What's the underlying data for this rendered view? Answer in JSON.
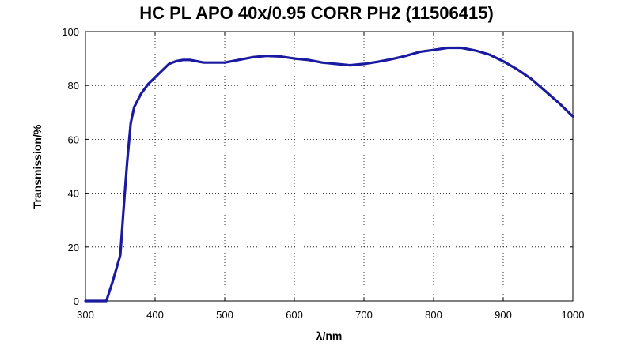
{
  "chart_data": {
    "type": "line",
    "title": "HC PL APO 40x/0.95 CORR PH2 (11506415)",
    "xlabel": "λ/nm",
    "ylabel": "Transmission/%",
    "xlim": [
      300,
      1000
    ],
    "ylim": [
      0,
      100
    ],
    "xticks": [
      300,
      400,
      500,
      600,
      700,
      800,
      900,
      1000
    ],
    "yticks": [
      0,
      20,
      40,
      60,
      80,
      100
    ],
    "grid": "dotted",
    "series": [
      {
        "color": "#1a1aa0",
        "x": [
          300,
          320,
          330,
          340,
          350,
          355,
          360,
          365,
          370,
          380,
          390,
          400,
          410,
          420,
          430,
          440,
          450,
          460,
          470,
          480,
          500,
          520,
          540,
          560,
          580,
          600,
          620,
          640,
          660,
          680,
          700,
          720,
          740,
          760,
          780,
          800,
          820,
          840,
          860,
          880,
          900,
          920,
          940,
          960,
          980,
          1000
        ],
        "y": [
          0,
          0,
          0,
          8,
          17,
          35,
          52,
          66,
          72,
          77,
          80.5,
          83,
          85.5,
          88,
          89,
          89.5,
          89.5,
          89,
          88.5,
          88.5,
          88.5,
          89.5,
          90.5,
          91,
          90.8,
          90,
          89.5,
          88.5,
          88,
          87.5,
          88,
          88.8,
          89.8,
          91,
          92.5,
          93.2,
          94,
          94,
          93,
          91.5,
          89,
          86,
          82.5,
          78,
          73.5,
          68.5
        ]
      }
    ]
  }
}
